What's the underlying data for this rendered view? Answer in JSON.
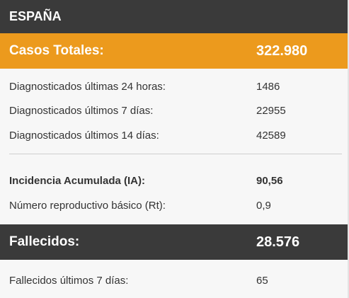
{
  "title": "ESPAÑA",
  "casos": {
    "label": "Casos Totales:",
    "value": "322.980"
  },
  "diagnosticados": [
    {
      "label": "Diagnosticados últimas 24 horas:",
      "value": "1486"
    },
    {
      "label": "Diagnosticados últimos 7 días:",
      "value": "22955"
    },
    {
      "label": "Diagnosticados últimos 14 días:",
      "value": "42589"
    }
  ],
  "indicadores": [
    {
      "label": "Incidencia Acumulada (IA):",
      "value": "90,56"
    },
    {
      "label": "Número reproductivo básico (Rt):",
      "value": "0,9"
    }
  ],
  "fallecidos": {
    "label": "Fallecidos:",
    "value": "28.576"
  },
  "fallecidos_detalle": [
    {
      "label": "Fallecidos últimos 7 días:",
      "value": "65"
    }
  ],
  "colors": {
    "header": "#3a3a3a",
    "accent": "#ec9a1d",
    "background": "#f7f7f7"
  }
}
